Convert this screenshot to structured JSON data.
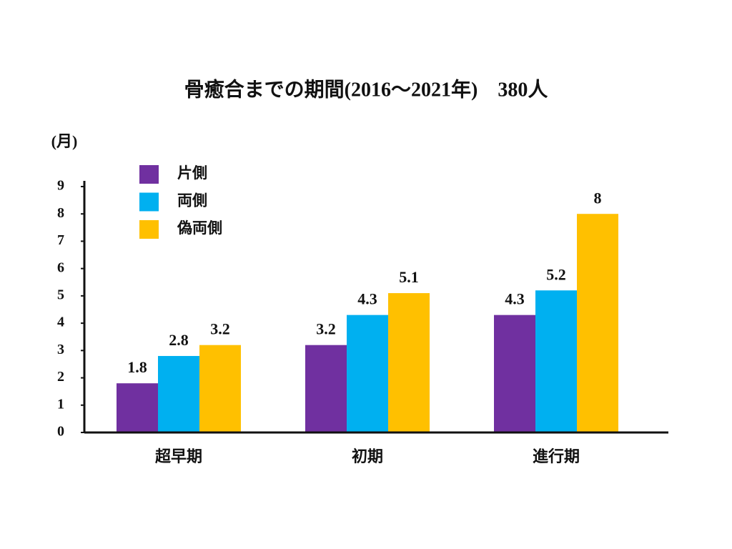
{
  "chart_data": {
    "type": "bar",
    "title": "骨癒合までの期間(2016〜2021年)　380人",
    "y_label": "(月)",
    "categories": [
      "超早期",
      "初期",
      "進行期"
    ],
    "series": [
      {
        "name": "片側",
        "color": "#7030a0",
        "values": [
          1.8,
          3.2,
          4.3
        ]
      },
      {
        "name": "両側",
        "color": "#00b0f0",
        "values": [
          2.8,
          4.3,
          5.2
        ]
      },
      {
        "name": "偽両側",
        "color": "#ffc000",
        "values": [
          3.2,
          5.1,
          8
        ]
      }
    ],
    "ylim": [
      0,
      9
    ],
    "yticks": [
      0,
      1,
      2,
      3,
      4,
      5,
      6,
      7,
      8,
      9
    ],
    "grid": false,
    "legend": "top-left"
  }
}
